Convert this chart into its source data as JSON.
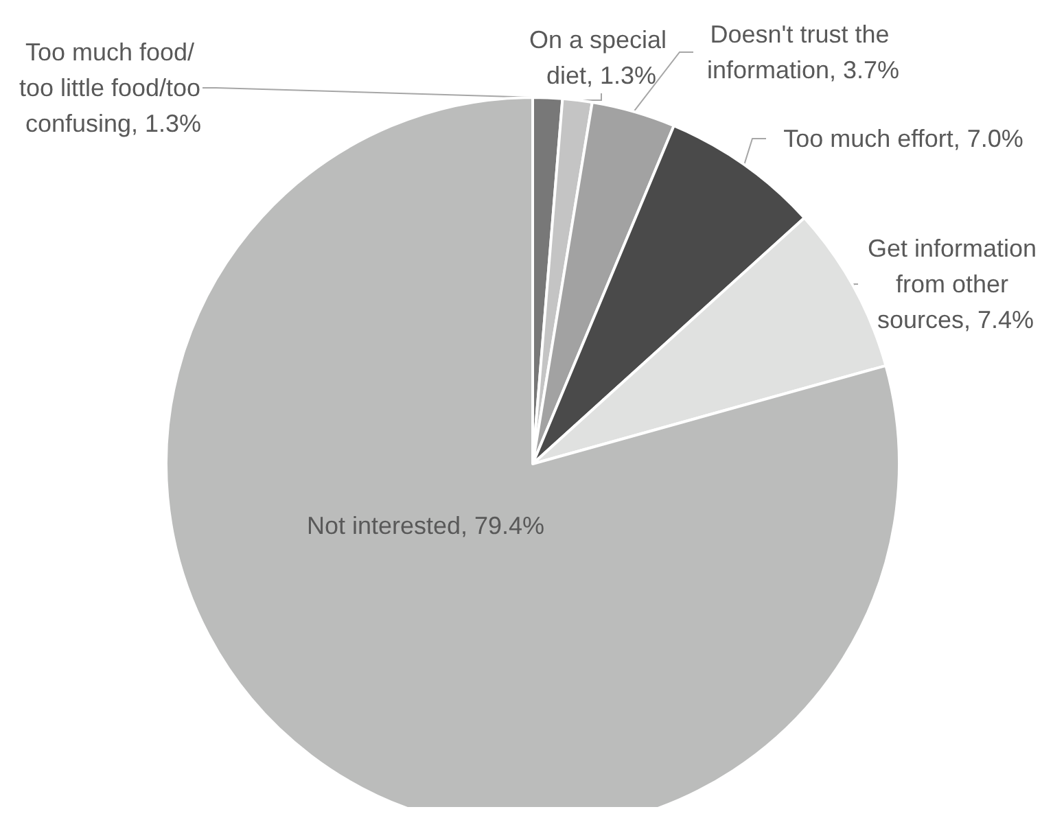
{
  "chart_data": {
    "type": "pie",
    "categories": [
      "Too much food/too little food/too confusing",
      "On a special diet",
      "Doesn't trust the information",
      "Too much effort",
      "Get information from other sources",
      "Not interested"
    ],
    "values": [
      1.3,
      1.3,
      3.7,
      7.0,
      7.4,
      79.4
    ],
    "value_labels": [
      "1.3%",
      "1.3%",
      "3.7%",
      "7.0%",
      "7.4%",
      "79.4%"
    ],
    "colors": [
      "#787878",
      "#c4c4c4",
      "#a2a2a2",
      "#4a4a4a",
      "#e0e1e0",
      "#bbbcbb"
    ],
    "legend": false
  }
}
